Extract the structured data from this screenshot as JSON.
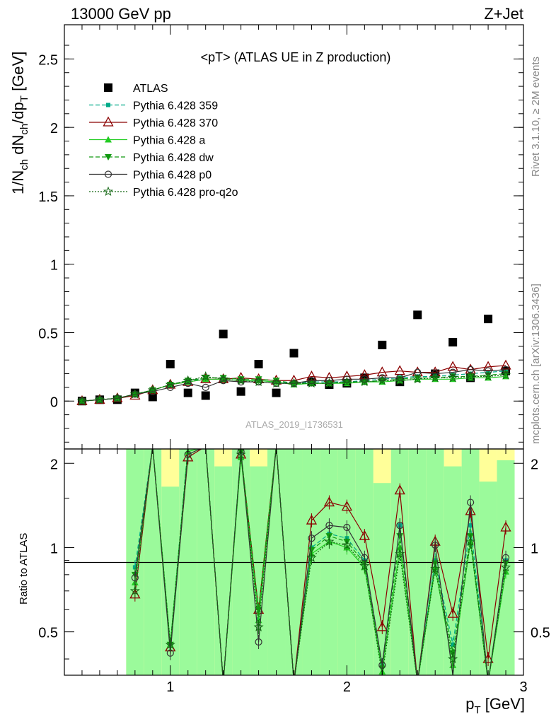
{
  "header": {
    "left": "13000 GeV pp",
    "right": "Z+Jet"
  },
  "side_texts": {
    "rivet": "Rivet 3.1.10, ≥ 2M events",
    "mcplots": "mcplots.cern.ch [arXiv:1306.3436]"
  },
  "watermark": "ATLAS_2019_I1736531",
  "plot_title": "<pT> (ATLAS UE in Z production)",
  "chart_data": [
    {
      "type": "scatter",
      "panel": "main",
      "ylabel": "1/N_ch dN_ch/dp_T [GeV]",
      "xlim": [
        0.4,
        3.0
      ],
      "ylim": [
        -0.35,
        2.75
      ],
      "yticks": [
        "0",
        "0.5",
        "1",
        "1.5",
        "2",
        "2.5"
      ],
      "x": [
        0.5,
        0.6,
        0.7,
        0.8,
        0.9,
        1.0,
        1.1,
        1.2,
        1.3,
        1.4,
        1.5,
        1.6,
        1.7,
        1.8,
        1.9,
        2.0,
        2.1,
        2.2,
        2.3,
        2.4,
        2.5,
        2.6,
        2.7,
        2.8,
        2.9
      ],
      "series": [
        {
          "name": "ATLAS",
          "color": "#000000",
          "marker": "square",
          "values": [
            0.0,
            0.01,
            0.01,
            0.06,
            0.03,
            0.27,
            0.06,
            0.04,
            0.49,
            0.07,
            0.27,
            0.06,
            0.35,
            0.14,
            0.12,
            0.13,
            0.17,
            0.41,
            0.14,
            0.63,
            0.2,
            0.43,
            0.17,
            0.6,
            0.22
          ]
        },
        {
          "name": "Pythia 6.428 359",
          "color": "#00aa88",
          "marker": "small-square",
          "dash": "dashed",
          "values": [
            0.0,
            0.01,
            0.02,
            0.05,
            0.08,
            0.12,
            0.15,
            0.16,
            0.16,
            0.15,
            0.15,
            0.14,
            0.13,
            0.14,
            0.14,
            0.14,
            0.15,
            0.16,
            0.17,
            0.18,
            0.18,
            0.19,
            0.2,
            0.21,
            0.22
          ]
        },
        {
          "name": "Pythia 6.428 370",
          "color": "#8b0000",
          "marker": "open-triangle",
          "dash": "solid",
          "values": [
            0.0,
            0.01,
            0.02,
            0.04,
            0.08,
            0.12,
            0.14,
            0.16,
            0.16,
            0.17,
            0.16,
            0.15,
            0.15,
            0.18,
            0.17,
            0.18,
            0.19,
            0.21,
            0.22,
            0.21,
            0.21,
            0.25,
            0.23,
            0.25,
            0.26
          ]
        },
        {
          "name": "Pythia 6.428 a",
          "color": "#22cc22",
          "marker": "triangle",
          "dash": "solid",
          "values": [
            0.0,
            0.01,
            0.02,
            0.05,
            0.08,
            0.12,
            0.14,
            0.16,
            0.16,
            0.15,
            0.15,
            0.14,
            0.12,
            0.13,
            0.13,
            0.13,
            0.14,
            0.14,
            0.15,
            0.16,
            0.16,
            0.16,
            0.17,
            0.17,
            0.18
          ]
        },
        {
          "name": "Pythia 6.428 dw",
          "color": "#119911",
          "marker": "down-triangle",
          "dash": "dashed",
          "values": [
            0.0,
            0.01,
            0.02,
            0.05,
            0.08,
            0.12,
            0.15,
            0.17,
            0.17,
            0.16,
            0.16,
            0.15,
            0.13,
            0.13,
            0.13,
            0.14,
            0.14,
            0.15,
            0.16,
            0.17,
            0.17,
            0.18,
            0.18,
            0.19,
            0.2
          ]
        },
        {
          "name": "Pythia 6.428 p0",
          "color": "#333333",
          "marker": "open-circle",
          "dash": "solid",
          "values": [
            0.0,
            0.01,
            0.02,
            0.05,
            0.07,
            0.1,
            0.13,
            0.1,
            0.15,
            0.14,
            0.14,
            0.13,
            0.13,
            0.15,
            0.15,
            0.16,
            0.16,
            0.17,
            0.17,
            0.21,
            0.2,
            0.21,
            0.23,
            0.22,
            0.23
          ]
        },
        {
          "name": "Pythia 6.428 pro-q2o",
          "color": "#116611",
          "marker": "open-star",
          "dash": "dotted",
          "values": [
            0.0,
            0.01,
            0.02,
            0.05,
            0.08,
            0.12,
            0.15,
            0.18,
            0.16,
            0.15,
            0.14,
            0.13,
            0.13,
            0.13,
            0.13,
            0.14,
            0.14,
            0.15,
            0.15,
            0.16,
            0.17,
            0.17,
            0.18,
            0.18,
            0.19
          ]
        }
      ]
    },
    {
      "type": "line",
      "panel": "ratio",
      "ylabel": "Ratio to ATLAS",
      "xlabel": "p_T [GeV]",
      "xlim": [
        0.4,
        3.0
      ],
      "ylim": [
        0.35,
        2.25
      ],
      "xticks": [
        "1",
        "2",
        "3"
      ],
      "yticks": [
        "0.5",
        "1",
        "2"
      ],
      "band": {
        "x": [
          0.8,
          0.9,
          1.0,
          1.1,
          1.2,
          1.3,
          1.4,
          1.5,
          1.6,
          1.7,
          1.8,
          1.9,
          2.0,
          2.1,
          2.2,
          2.3,
          2.4,
          2.5,
          2.6,
          2.7,
          2.8,
          2.9
        ],
        "green_upper": [
          2.3,
          2.3,
          2.12,
          2.3,
          2.3,
          2.3,
          2.3,
          2.3,
          2.3,
          2.3,
          2.3,
          2.3,
          2.3,
          2.3,
          2.12,
          2.3,
          2.3,
          2.3,
          2.3,
          2.3,
          2.12,
          2.3
        ],
        "green_lower": [
          0.35,
          0.35,
          0.35,
          0.35,
          0.35,
          0.35,
          0.35,
          0.35,
          0.35,
          0.35,
          0.35,
          0.35,
          0.35,
          0.35,
          0.35,
          0.35,
          0.35,
          0.35,
          0.35,
          0.35,
          0.35,
          0.35
        ],
        "yellow_upper": [
          2.3,
          2.3,
          2.3,
          2.3,
          2.3,
          2.3,
          2.3,
          2.3,
          2.3,
          2.3,
          2.3,
          2.3,
          2.3,
          2.3,
          2.3,
          2.3,
          2.3,
          2.3,
          2.3,
          2.3,
          2.3,
          2.3
        ],
        "yellow_lower_visible": [
          2.3,
          2.3,
          1.65,
          2.3,
          2.3,
          1.95,
          2.3,
          1.95,
          2.3,
          2.3,
          2.3,
          2.3,
          2.3,
          2.3,
          1.7,
          2.3,
          2.3,
          2.3,
          1.95,
          2.3,
          1.72,
          2.05
        ],
        "green_color": "#9bfa9b",
        "yellow_color": "#ffff99"
      },
      "ratios": [
        {
          "name": "Pythia 6.428 359",
          "values": [
            0.85,
            2.3,
            0.45,
            2.3,
            2.3,
            0.33,
            2.2,
            0.55,
            2.3,
            0.33,
            1.0,
            1.12,
            1.08,
            0.9,
            0.38,
            1.2,
            0.33,
            0.9,
            0.45,
            1.2,
            0.33,
            0.9
          ]
        },
        {
          "name": "Pythia 6.428 370",
          "values": [
            0.68,
            2.3,
            0.44,
            2.1,
            2.3,
            0.33,
            2.15,
            0.6,
            2.3,
            0.33,
            1.25,
            1.45,
            1.4,
            1.1,
            0.52,
            1.6,
            0.33,
            1.05,
            0.58,
            1.35,
            0.4,
            1.18
          ]
        },
        {
          "name": "Pythia 6.428 a",
          "values": [
            0.75,
            2.3,
            0.45,
            2.2,
            2.3,
            0.33,
            2.1,
            0.55,
            2.3,
            0.33,
            0.95,
            1.05,
            1.0,
            0.85,
            0.36,
            1.0,
            0.33,
            0.85,
            0.38,
            1.05,
            0.33,
            0.82
          ]
        },
        {
          "name": "Pythia 6.428 dw",
          "values": [
            0.8,
            2.3,
            0.45,
            2.25,
            2.3,
            0.33,
            2.2,
            0.6,
            2.3,
            0.33,
            0.98,
            1.1,
            1.05,
            0.88,
            0.37,
            1.1,
            0.33,
            0.88,
            0.42,
            1.1,
            0.33,
            0.88
          ]
        },
        {
          "name": "Pythia 6.428 p0",
          "values": [
            0.78,
            2.3,
            0.42,
            2.15,
            2.3,
            0.33,
            2.2,
            0.46,
            2.3,
            0.33,
            1.08,
            1.2,
            1.18,
            0.92,
            0.38,
            1.2,
            0.33,
            1.02,
            0.35,
            1.45,
            0.33,
            0.92
          ]
        },
        {
          "name": "Pythia 6.428 pro-q2o",
          "values": [
            0.7,
            2.3,
            0.45,
            2.25,
            2.3,
            0.33,
            2.15,
            0.52,
            2.3,
            0.33,
            0.92,
            1.05,
            1.02,
            0.86,
            0.35,
            0.95,
            0.33,
            0.84,
            0.4,
            1.05,
            0.33,
            0.85
          ]
        }
      ]
    }
  ]
}
